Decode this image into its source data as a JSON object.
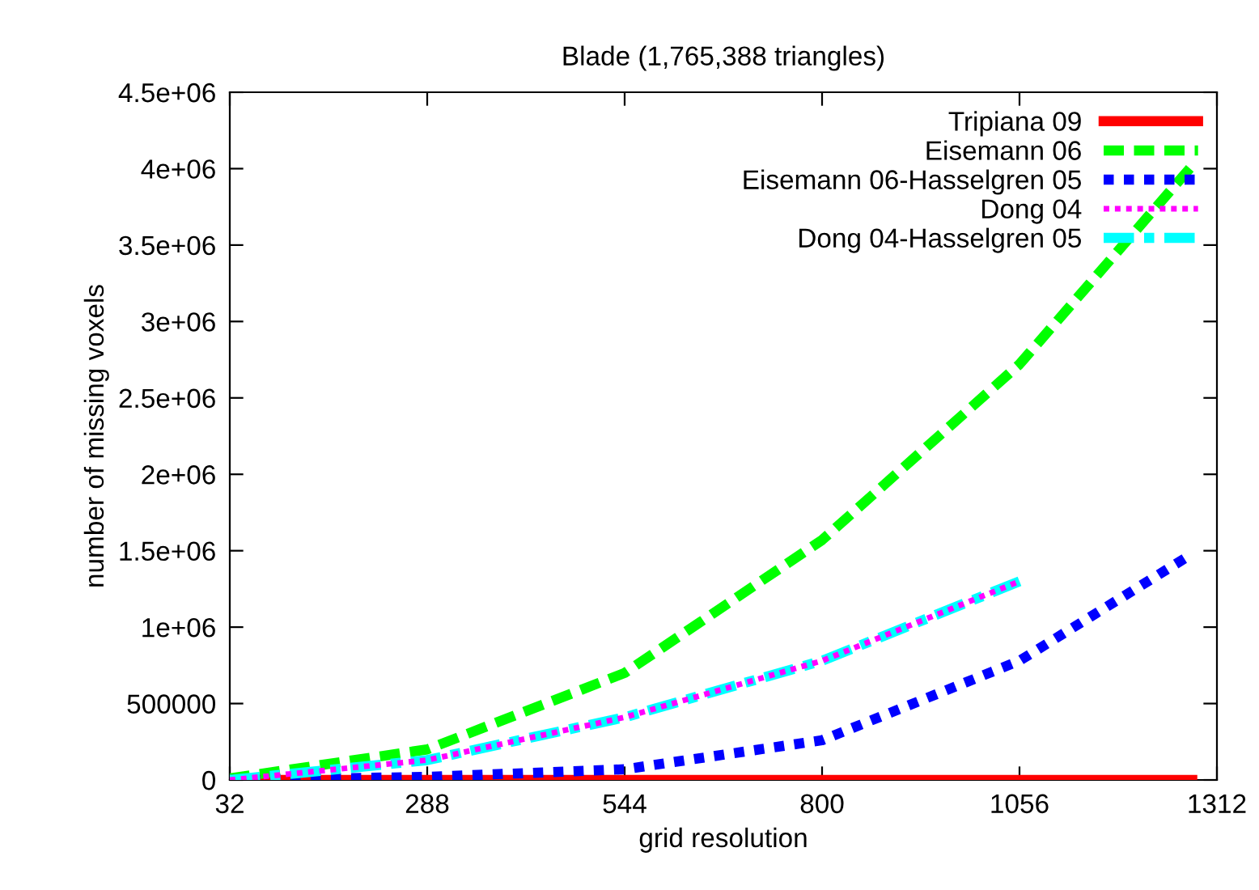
{
  "chart_data": {
    "type": "line",
    "title": "Blade (1,765,388 triangles)",
    "xlabel": "grid resolution",
    "ylabel": "number of missing voxels",
    "x": [
      32,
      288,
      544,
      800,
      1056,
      1280
    ],
    "series": [
      {
        "name": "Tripiana 09",
        "color": "#ff0000",
        "line_style": "solid",
        "values": [
          0,
          0,
          0,
          0,
          0,
          0
        ]
      },
      {
        "name": "Eisemann 06",
        "color": "#00ff00",
        "line_style": "dashed",
        "values": [
          10000,
          200000,
          700000,
          1570000,
          2720000,
          4020000
        ]
      },
      {
        "name": "Eisemann 06-Hasselgren 05",
        "color": "#0000ff",
        "line_style": "dotted",
        "values": [
          0,
          20000,
          70000,
          260000,
          780000,
          1480000
        ]
      },
      {
        "name": "Dong 04",
        "color": "#ff00ff",
        "line_style": "dotted",
        "values": [
          0,
          130000,
          410000,
          780000,
          1300000,
          null
        ]
      },
      {
        "name": "Dong 04-Hasselgren 05",
        "color": "#00ffff",
        "line_style": "dashdot",
        "values": [
          0,
          130000,
          410000,
          780000,
          1300000,
          null
        ]
      }
    ],
    "xlim": [
      32,
      1312
    ],
    "xticks": [
      32,
      288,
      544,
      800,
      1056,
      1312
    ],
    "ylim": [
      0,
      4500000
    ],
    "yticks": [
      {
        "value": 0,
        "label": "0"
      },
      {
        "value": 500000,
        "label": "500000"
      },
      {
        "value": 1000000,
        "label": "1e+06"
      },
      {
        "value": 1500000,
        "label": "1.5e+06"
      },
      {
        "value": 2000000,
        "label": "2e+06"
      },
      {
        "value": 2500000,
        "label": "2.5e+06"
      },
      {
        "value": 3000000,
        "label": "3e+06"
      },
      {
        "value": 3500000,
        "label": "3.5e+06"
      },
      {
        "value": 4000000,
        "label": "4e+06"
      },
      {
        "value": 4500000,
        "label": "4.5e+06"
      }
    ],
    "grid": false,
    "legend": "top right",
    "marker": "none"
  }
}
